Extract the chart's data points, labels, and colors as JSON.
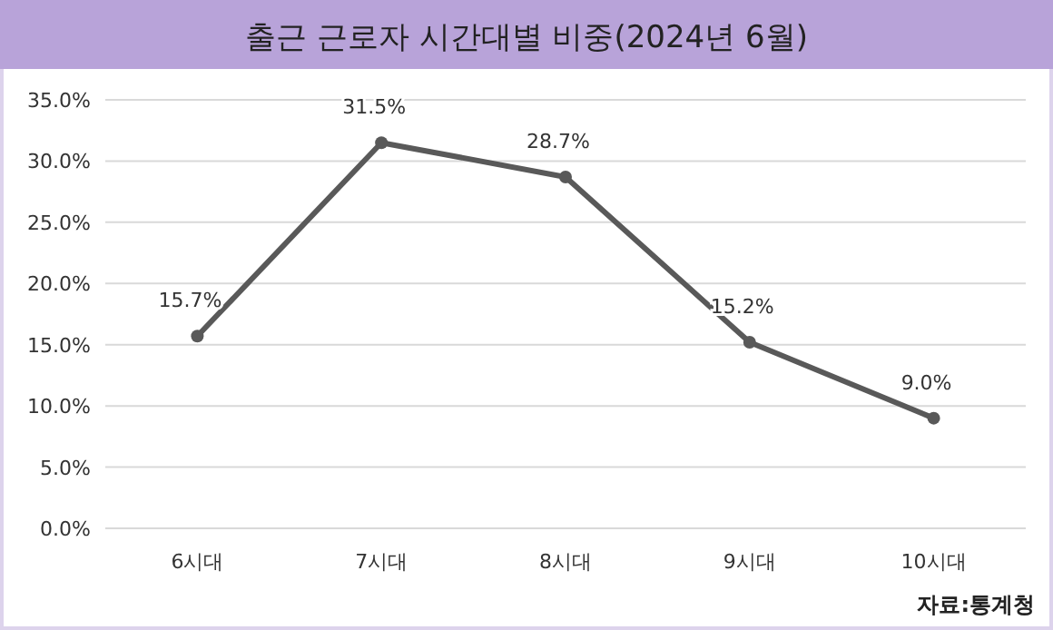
{
  "chart_data": {
    "type": "line",
    "title": "출근 근로자 시간대별 비중(2024년 6월)",
    "categories": [
      "6시대",
      "7시대",
      "8시대",
      "9시대",
      "10시대"
    ],
    "series": [
      {
        "color": "#595959",
        "values": [
          15.7,
          31.5,
          28.7,
          15.2,
          9.0
        ],
        "value_labels": [
          "15.7%",
          "31.5%",
          "28.7%",
          "15.2%",
          "9.0%"
        ]
      }
    ],
    "ylim": [
      0,
      35
    ],
    "yticks": [
      {
        "value": 0,
        "label": "0.0%"
      },
      {
        "value": 5,
        "label": "5.0%"
      },
      {
        "value": 10,
        "label": "10.0%"
      },
      {
        "value": 15,
        "label": "15.0%"
      },
      {
        "value": 20,
        "label": "20.0%"
      },
      {
        "value": 25,
        "label": "25.0%"
      },
      {
        "value": 30,
        "label": "30.0%"
      },
      {
        "value": 35,
        "label": "35.0%"
      }
    ],
    "grid": "y",
    "marker": "circle",
    "line_style": "solid",
    "annotations": [
      "자료:통계청"
    ]
  }
}
